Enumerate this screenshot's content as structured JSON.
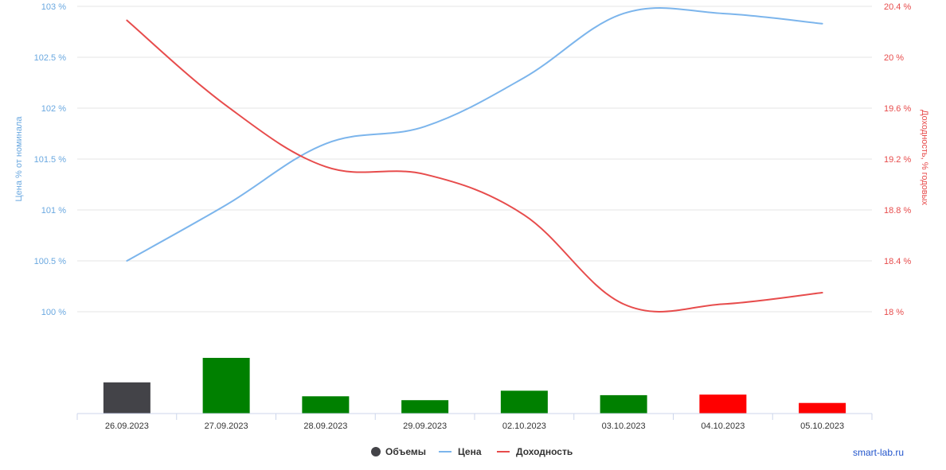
{
  "chart_data": {
    "type": "line",
    "categories": [
      "26.09.2023",
      "27.09.2023",
      "28.09.2023",
      "29.09.2023",
      "02.10.2023",
      "03.10.2023",
      "04.10.2023",
      "05.10.2023"
    ],
    "left_axis": {
      "label": "Цена % от номинала",
      "ylim": [
        100,
        103
      ],
      "ticks": [
        "100 %",
        "100.5 %",
        "101 %",
        "101.5 %",
        "102 %",
        "102.5 %",
        "103 %"
      ],
      "tick_values": [
        100,
        100.5,
        101,
        101.5,
        102,
        102.5,
        103
      ],
      "color": "#7cb5ec"
    },
    "right_axis": {
      "label": "Доходность, % годовых",
      "ylim": [
        18,
        20.4
      ],
      "ticks": [
        "18 %",
        "18.4 %",
        "18.8 %",
        "19.2 %",
        "19.6 %",
        "20 %",
        "20.4 %"
      ],
      "tick_values": [
        18,
        18.4,
        18.8,
        19.2,
        19.6,
        20,
        20.4
      ],
      "color": "#e74c4c"
    },
    "series": [
      {
        "name": "Объемы",
        "kind": "bar",
        "values": [
          0.56,
          1.0,
          0.31,
          0.24,
          0.41,
          0.33,
          0.34,
          0.19
        ],
        "colors": [
          "#434348",
          "#008000",
          "#008000",
          "#008000",
          "#008000",
          "#008000",
          "#ff0000",
          "#ff0000"
        ]
      },
      {
        "name": "Цена",
        "kind": "line",
        "axis": "left",
        "color": "#7cb5ec",
        "values": [
          100.5,
          101.05,
          101.65,
          101.82,
          102.3,
          102.93,
          102.93,
          102.83
        ]
      },
      {
        "name": "Доходность",
        "kind": "line",
        "axis": "right",
        "color": "#e74c4c",
        "values": [
          20.29,
          19.62,
          19.14,
          19.08,
          18.76,
          18.06,
          18.06,
          18.15
        ]
      }
    ],
    "legend": {
      "position": "bottom-center",
      "items": [
        {
          "label": "Объемы",
          "symbol": "circle",
          "color": "#434348"
        },
        {
          "label": "Цена",
          "symbol": "line",
          "color": "#7cb5ec"
        },
        {
          "label": "Доходность",
          "symbol": "line",
          "color": "#e74c4c"
        }
      ]
    },
    "grid": true
  },
  "credit": "smart-lab.ru"
}
